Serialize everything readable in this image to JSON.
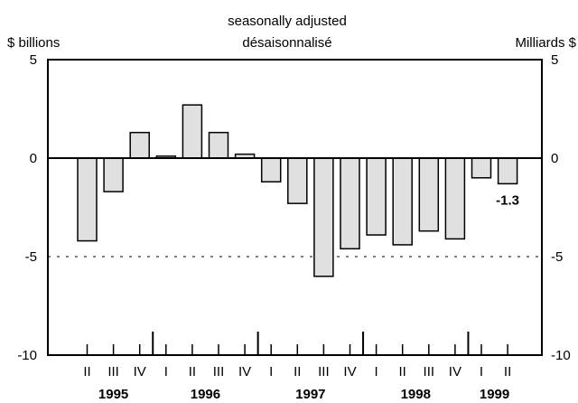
{
  "chart_data": {
    "type": "bar",
    "subtitle_en": "seasonally adjusted",
    "subtitle_fr": "désaisonnalisé",
    "ylabel_left": "$ billions",
    "ylabel_right": "Milliards $",
    "ylim": [
      -10,
      5
    ],
    "yticks": [
      "5",
      "0",
      "-5",
      "-10"
    ],
    "reference_line": -5,
    "categories": [
      "II",
      "III",
      "IV",
      "I",
      "II",
      "III",
      "IV",
      "I",
      "II",
      "III",
      "IV",
      "I",
      "II",
      "III",
      "IV",
      "I",
      "II"
    ],
    "years": [
      {
        "label": "1995",
        "start": 0,
        "count": 3
      },
      {
        "label": "1996",
        "start": 3,
        "count": 4
      },
      {
        "label": "1997",
        "start": 7,
        "count": 4
      },
      {
        "label": "1998",
        "start": 11,
        "count": 4
      },
      {
        "label": "1999",
        "start": 15,
        "count": 2
      }
    ],
    "values": [
      -4.2,
      -1.7,
      1.3,
      0.1,
      2.7,
      1.3,
      0.2,
      -1.2,
      -2.3,
      -6.0,
      -4.6,
      -3.9,
      -4.4,
      -3.7,
      -4.1,
      -1.0,
      -1.3
    ],
    "data_label": {
      "index": 16,
      "text": "-1.3"
    },
    "bar_color": "#e0e0e0",
    "grid": false
  }
}
